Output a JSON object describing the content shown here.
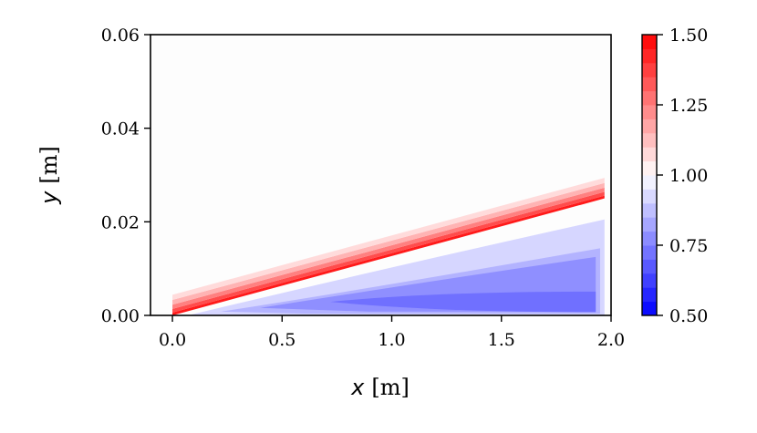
{
  "chart_data": {
    "type": "contour",
    "xlabel": {
      "symbol": "x",
      "unit": "[m]"
    },
    "ylabel": {
      "symbol": "y",
      "unit": "[m]"
    },
    "xlim": [
      -0.1,
      2.0
    ],
    "ylim": [
      0.0,
      0.06
    ],
    "x_ticks": [
      "0.0",
      "0.5",
      "1.0",
      "1.5",
      "2.0"
    ],
    "x_tick_values": [
      0.0,
      0.5,
      1.0,
      1.5,
      2.0
    ],
    "y_ticks": [
      "0.00",
      "0.02",
      "0.04",
      "0.06"
    ],
    "y_tick_values": [
      0.0,
      0.02,
      0.04,
      0.06
    ],
    "colorbar": {
      "cmap": "bwr",
      "range": [
        0.5,
        1.5
      ],
      "levels": 20,
      "ticks": [
        "0.50",
        "0.75",
        "1.00",
        "1.25",
        "1.50"
      ],
      "tick_values": [
        0.5,
        0.75,
        1.0,
        1.25,
        1.5
      ]
    },
    "background_value": 1.0,
    "field": {
      "description_free": true,
      "shock_line": {
        "x": [
          0.0,
          1.97
        ],
        "y": [
          0.0,
          0.025
        ]
      },
      "bands_above_shock": [
        {
          "value": 1.45,
          "thickness_m": 0.0006
        },
        {
          "value": 1.35,
          "thickness_m": 0.0008
        },
        {
          "value": 1.25,
          "thickness_m": 0.0009
        },
        {
          "value": 1.15,
          "thickness_m": 0.001
        },
        {
          "value": 1.07,
          "thickness_m": 0.0011
        }
      ],
      "regions_below_shock": [
        {
          "value": 0.92,
          "x_start": 0.07,
          "x_end": 1.97,
          "top_offset_frac": 0.18
        },
        {
          "value": 0.85,
          "x_start": 0.22,
          "x_end": 1.95,
          "top_offset_frac": 0.42,
          "bottom_y": 0.0004
        },
        {
          "value": 0.78,
          "x_start": 0.4,
          "x_end": 1.93,
          "top_y_end": 0.0125,
          "bottom_y": 0.0008
        },
        {
          "value": 0.72,
          "x_start": 0.72,
          "x_end": 1.93,
          "center_y": 0.0029,
          "half_height_end": 0.0022
        }
      ]
    }
  }
}
